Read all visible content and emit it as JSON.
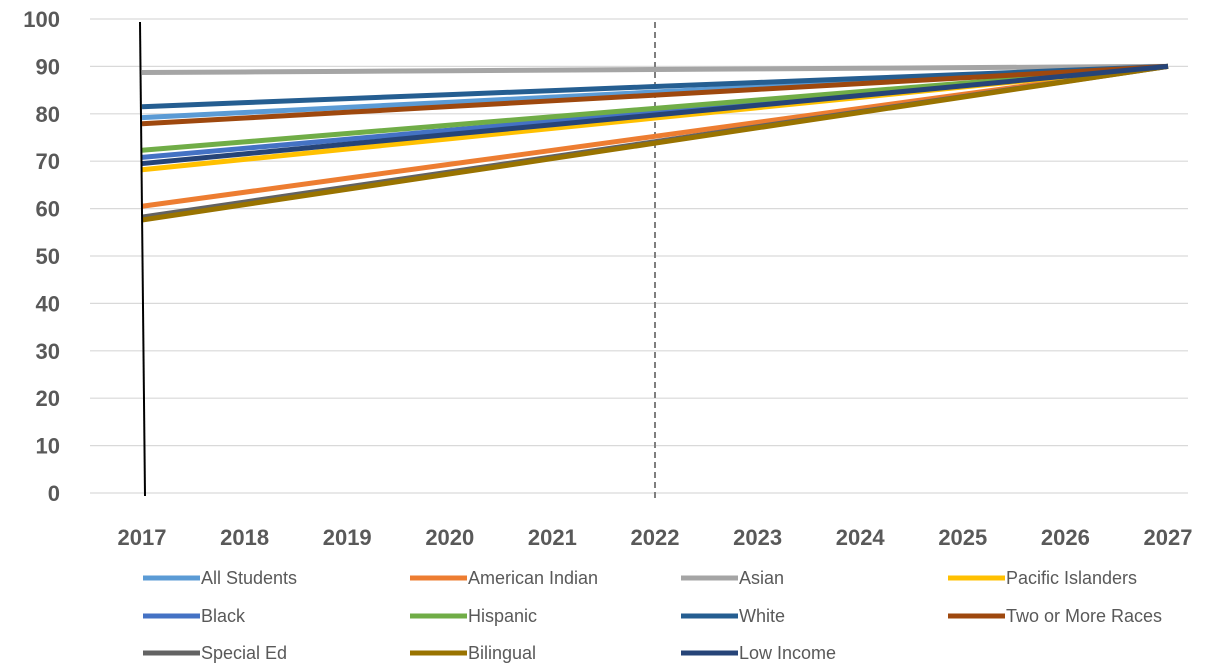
{
  "chart_data": {
    "type": "line",
    "title": "",
    "xlabel": "",
    "ylabel": "",
    "x": [
      "2017",
      "2018",
      "2019",
      "2020",
      "2021",
      "2022",
      "2023",
      "2024",
      "2025",
      "2026",
      "2027"
    ],
    "ylim": [
      0,
      100
    ],
    "y_ticks": [
      "0",
      "10",
      "20",
      "30",
      "40",
      "50",
      "60",
      "70",
      "80",
      "90",
      "100"
    ],
    "grid": true,
    "legend_position": "bottom",
    "reference_line_x": "2022",
    "series": [
      {
        "name": "All Students",
        "color": "#5B9BD5",
        "values": [
          79.2,
          80.28,
          81.36,
          82.44,
          83.52,
          84.6,
          85.68,
          86.76,
          87.84,
          88.92,
          90
        ]
      },
      {
        "name": "American Indian",
        "color": "#ED7D31",
        "values": [
          60.5,
          63.45,
          66.4,
          69.35,
          72.3,
          75.25,
          78.2,
          81.15,
          84.1,
          87.05,
          90
        ]
      },
      {
        "name": "Asian",
        "color": "#A5A5A5",
        "values": [
          88.7,
          88.83,
          88.96,
          89.09,
          89.22,
          89.35,
          89.48,
          89.61,
          89.74,
          89.87,
          90
        ]
      },
      {
        "name": "Pacific Islanders",
        "color": "#FFC000",
        "values": [
          68.2,
          70.38,
          72.56,
          74.74,
          76.92,
          79.1,
          81.28,
          83.46,
          85.64,
          87.82,
          90
        ]
      },
      {
        "name": "Black",
        "color": "#4472C4",
        "values": [
          70.8,
          72.72,
          74.64,
          76.56,
          78.48,
          80.4,
          82.32,
          84.24,
          86.16,
          88.08,
          90
        ]
      },
      {
        "name": "Hispanic",
        "color": "#70AD47",
        "values": [
          72.3,
          74.07,
          75.84,
          77.61,
          79.38,
          81.15,
          82.92,
          84.69,
          86.46,
          88.23,
          90
        ]
      },
      {
        "name": "White",
        "color": "#255E91",
        "values": [
          81.5,
          82.35,
          83.2,
          84.05,
          84.9,
          85.75,
          86.6,
          87.45,
          88.3,
          89.15,
          90
        ]
      },
      {
        "name": "Two or More Races",
        "color": "#9E480E",
        "values": [
          77.9,
          79.11,
          80.32,
          81.53,
          82.74,
          83.95,
          85.16,
          86.37,
          87.58,
          88.79,
          90
        ]
      },
      {
        "name": "Special Ed",
        "color": "#636363",
        "values": [
          58.2,
          61.38,
          64.56,
          67.74,
          70.92,
          74.1,
          77.28,
          80.46,
          83.64,
          86.82,
          90
        ]
      },
      {
        "name": "Bilingual",
        "color": "#997300",
        "values": [
          57.6,
          60.84,
          64.08,
          67.32,
          70.56,
          73.8,
          77.04,
          80.28,
          83.52,
          86.76,
          90
        ]
      },
      {
        "name": "Low Income",
        "color": "#264478",
        "values": [
          69.5,
          71.55,
          73.6,
          75.65,
          77.7,
          79.75,
          81.8,
          83.85,
          85.9,
          87.95,
          90
        ]
      }
    ]
  }
}
